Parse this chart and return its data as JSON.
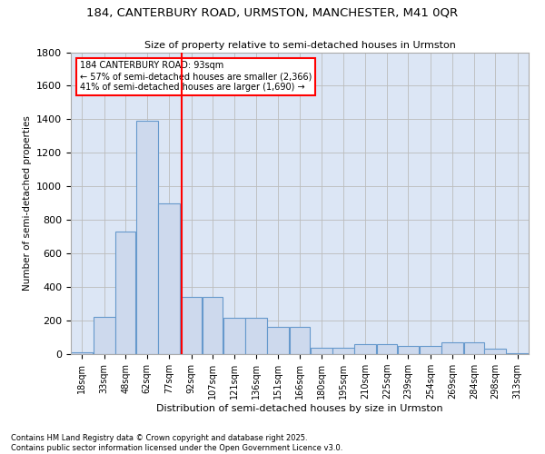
{
  "title_line1": "184, CANTERBURY ROAD, URMSTON, MANCHESTER, M41 0QR",
  "title_line2": "Size of property relative to semi-detached houses in Urmston",
  "xlabel": "Distribution of semi-detached houses by size in Urmston",
  "ylabel": "Number of semi-detached properties",
  "bin_labels": [
    "18sqm",
    "33sqm",
    "48sqm",
    "62sqm",
    "77sqm",
    "92sqm",
    "107sqm",
    "121sqm",
    "136sqm",
    "151sqm",
    "166sqm",
    "180sqm",
    "195sqm",
    "210sqm",
    "225sqm",
    "239sqm",
    "254sqm",
    "269sqm",
    "284sqm",
    "298sqm",
    "313sqm"
  ],
  "bin_edges": [
    18,
    33,
    48,
    62,
    77,
    92,
    107,
    121,
    136,
    151,
    166,
    180,
    195,
    210,
    225,
    239,
    254,
    269,
    284,
    298,
    313,
    328
  ],
  "bar_heights": [
    10,
    220,
    730,
    1390,
    900,
    340,
    340,
    215,
    215,
    160,
    160,
    40,
    40,
    60,
    60,
    50,
    50,
    70,
    70,
    30,
    5
  ],
  "bar_color": "#cdd9ed",
  "bar_edge_color": "#6699cc",
  "vline_x": 93,
  "vline_color": "red",
  "annotation_title": "184 CANTERBURY ROAD: 93sqm",
  "annotation_line1": "← 57% of semi-detached houses are smaller (2,366)",
  "annotation_line2": "41% of semi-detached houses are larger (1,690) →",
  "annotation_box_color": "red",
  "ylim": [
    0,
    1800
  ],
  "yticks": [
    0,
    200,
    400,
    600,
    800,
    1000,
    1200,
    1400,
    1600,
    1800
  ],
  "grid_color": "#bbbbbb",
  "bg_color": "#dce6f5",
  "footnote1": "Contains HM Land Registry data © Crown copyright and database right 2025.",
  "footnote2": "Contains public sector information licensed under the Open Government Licence v3.0."
}
